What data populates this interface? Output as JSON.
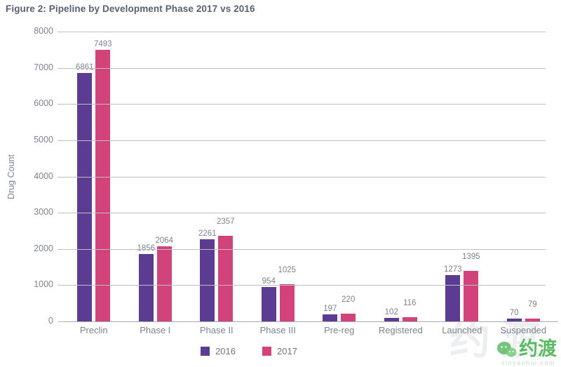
{
  "chart_data": {
    "type": "bar",
    "title": "Figure 2: Pipeline by Development Phase 2017 vs 2016",
    "xlabel": "",
    "ylabel": "Drug Count",
    "categories": [
      "Preclin",
      "Phase I",
      "Phase II",
      "Phase III",
      "Pre-reg",
      "Registered",
      "Launched",
      "Suspended"
    ],
    "series": [
      {
        "name": "2016",
        "color": "#5C3C92",
        "values": [
          6861,
          1856,
          2261,
          954,
          197,
          102,
          1273,
          70
        ]
      },
      {
        "name": "2017",
        "color": "#D2437C",
        "values": [
          7493,
          2064,
          2357,
          1025,
          220,
          116,
          1395,
          79
        ]
      }
    ],
    "ylim": [
      0,
      8000
    ],
    "yticks": [
      0,
      1000,
      2000,
      3000,
      4000,
      5000,
      6000,
      7000,
      8000
    ],
    "grid": true,
    "legend_position": "bottom",
    "colors": {
      "grid": "#BCBFC4",
      "axis": "#A7ABB1",
      "text": "#7C8490",
      "title": "#586173"
    }
  },
  "watermark": {
    "brand_text": "约渡",
    "brand_color": "#3FAE49",
    "sub_text": "xinyaohui.com",
    "ghost_text": "约渡"
  }
}
